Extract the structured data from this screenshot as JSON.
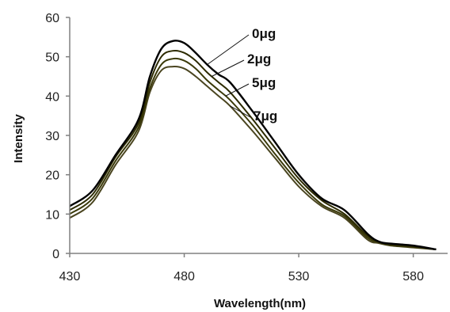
{
  "chart_data": {
    "type": "line",
    "title": "",
    "xlabel": "Wavelength(nm)",
    "ylabel": "Intensity",
    "xlim": [
      430,
      595
    ],
    "ylim": [
      0,
      60
    ],
    "xticks": [
      430,
      480,
      530,
      580
    ],
    "yticks": [
      0,
      10,
      20,
      30,
      40,
      50,
      60
    ],
    "grid": false,
    "legend": "none",
    "annotations": [
      {
        "text": "0μg",
        "series_index": 0
      },
      {
        "text": "2μg",
        "series_index": 1
      },
      {
        "text": "5μg",
        "series_index": 2
      },
      {
        "text": "7μg",
        "series_index": 3
      }
    ],
    "series": [
      {
        "label": "0μg",
        "color": "#000000",
        "x": [
          430,
          440,
          450,
          460,
          465,
          470,
          475,
          480,
          485,
          490,
          495,
          500,
          510,
          520,
          530,
          540,
          550,
          560,
          565,
          570,
          580,
          590
        ],
        "y": [
          12,
          16,
          25,
          34,
          45,
          52,
          54,
          53.5,
          51,
          48,
          45.5,
          43.5,
          36,
          28,
          20,
          14,
          11,
          5,
          3,
          2.5,
          2,
          1
        ]
      },
      {
        "label": "2μg",
        "color": "#2c2a00",
        "x": [
          430,
          440,
          450,
          460,
          465,
          470,
          475,
          480,
          485,
          490,
          495,
          500,
          510,
          520,
          530,
          540,
          550,
          560,
          565,
          570,
          580,
          590
        ],
        "y": [
          11,
          15,
          24.5,
          33,
          43.5,
          50,
          51.5,
          51,
          49,
          46,
          43.5,
          41,
          34,
          26.5,
          19,
          13.5,
          10,
          4.5,
          3,
          2.3,
          1.8,
          1
        ]
      },
      {
        "label": "5μg",
        "color": "#3b3a0a",
        "x": [
          430,
          440,
          450,
          460,
          465,
          470,
          475,
          480,
          485,
          490,
          495,
          500,
          510,
          520,
          530,
          540,
          550,
          560,
          565,
          570,
          580,
          590
        ],
        "y": [
          10,
          14,
          23.5,
          32,
          42,
          48,
          49.5,
          49,
          47,
          44,
          41.5,
          39,
          32.5,
          25,
          18,
          12.5,
          9.5,
          4,
          2.8,
          2.1,
          1.6,
          1
        ]
      },
      {
        "label": "7μg",
        "color": "#4a4520",
        "x": [
          430,
          440,
          450,
          460,
          465,
          470,
          475,
          480,
          485,
          490,
          495,
          500,
          510,
          520,
          530,
          540,
          550,
          560,
          565,
          570,
          580,
          590
        ],
        "y": [
          9,
          13,
          22.5,
          31,
          41,
          46.5,
          47.5,
          47,
          45,
          42.5,
          40,
          37.5,
          31,
          24,
          17,
          12,
          9,
          3.5,
          2.6,
          2,
          1.5,
          1
        ]
      }
    ]
  }
}
